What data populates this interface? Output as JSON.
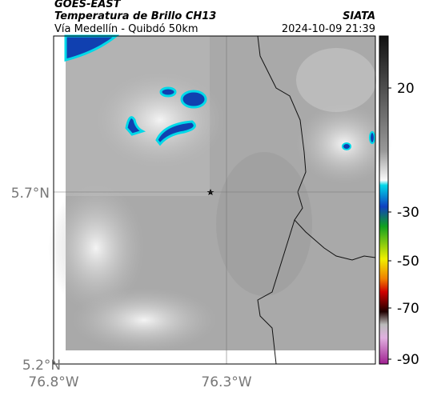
{
  "header": {
    "satellite": "GOES-EAST",
    "product": "Temperatura de Brillo CH13",
    "source": "SIATA",
    "route": "Vía Medellín - Quibdó 50km",
    "timestamp": "2024-10-09 21:39"
  },
  "axes": {
    "lat_labels": [
      "5.7°N",
      "5.2°N"
    ],
    "lon_labels": [
      "76.8°W",
      "76.3°W"
    ]
  },
  "colorbar": {
    "ticks": [
      20,
      -30,
      -50,
      -70,
      -90
    ]
  }
}
